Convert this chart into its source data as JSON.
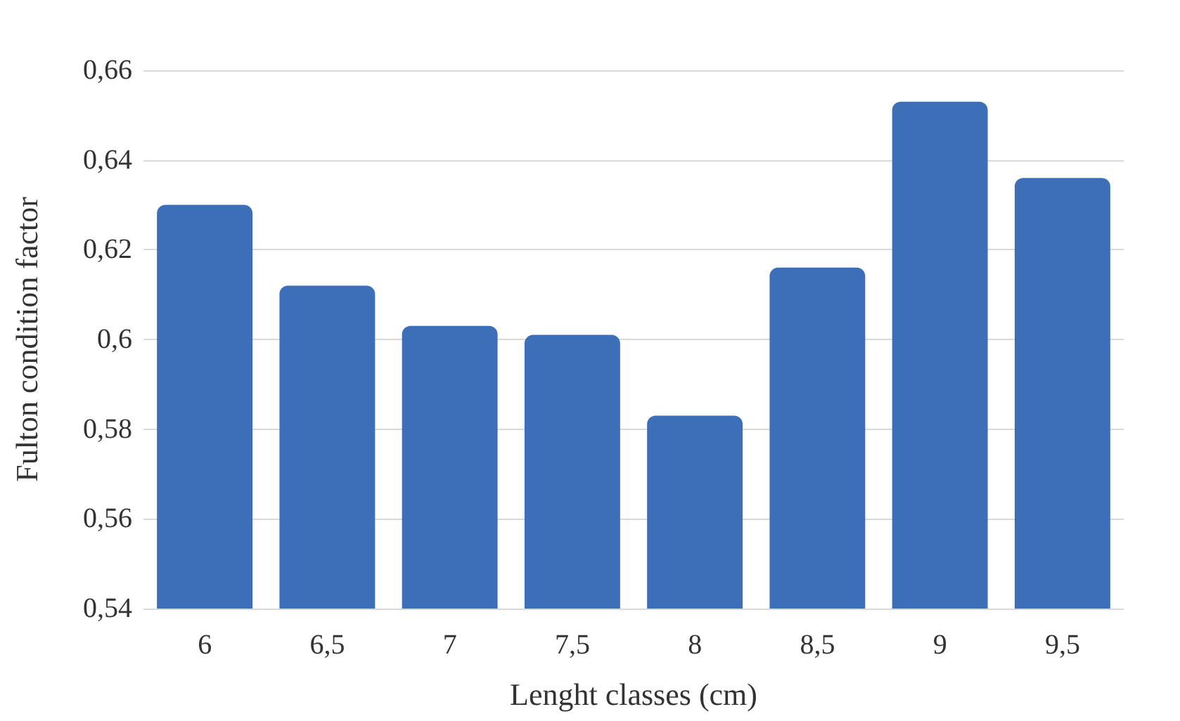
{
  "chart_data": {
    "type": "bar",
    "xlabel": "Lenght classes (cm)",
    "ylabel": "Fulton condition factor",
    "categories": [
      "6",
      "6,5",
      "7",
      "7,5",
      "8",
      "8,5",
      "9",
      "9,5"
    ],
    "values": [
      0.63,
      0.612,
      0.603,
      0.601,
      0.583,
      0.616,
      0.653,
      0.636
    ],
    "color": "#3d6fb8",
    "ylim": [
      0.54,
      0.66
    ],
    "yticks": [
      {
        "value": 0.54,
        "label": "0,54"
      },
      {
        "value": 0.56,
        "label": "0,56"
      },
      {
        "value": 0.58,
        "label": "0,58"
      },
      {
        "value": 0.6,
        "label": "0,6"
      },
      {
        "value": 0.62,
        "label": "0,62"
      },
      {
        "value": 0.64,
        "label": "0,64"
      },
      {
        "value": 0.66,
        "label": "0,66"
      }
    ],
    "grid": "y"
  }
}
